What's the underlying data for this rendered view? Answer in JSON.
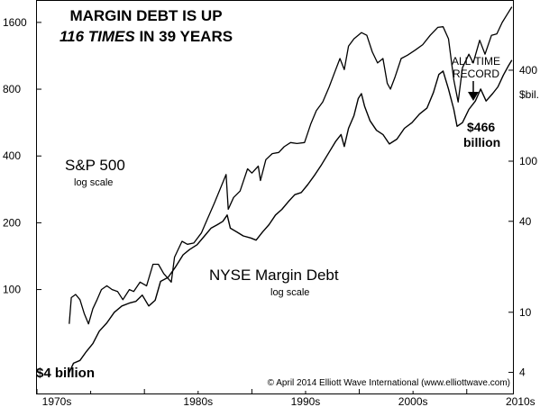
{
  "chart_data": {
    "type": "line",
    "title_line1": "MARGIN DEBT IS UP",
    "title_line2_italic": "116 TIMES",
    "title_line2_rest": " IN 39 YEARS",
    "x_ticks": [
      "1970s",
      "1980s",
      "1990s",
      "2000s",
      "2010s"
    ],
    "xlim": [
      1970,
      2014.3
    ],
    "left_axis": {
      "scale": "log",
      "ticks": [
        "1600",
        "800",
        "400",
        "200",
        "100"
      ],
      "ylim": [
        34,
        2000
      ]
    },
    "right_axis": {
      "scale": "log",
      "unit_label": "$bil.",
      "ticks": [
        "400",
        "100",
        "40",
        "10",
        "4"
      ],
      "ylim": [
        2.9,
        1150
      ]
    },
    "grid": false,
    "series": [
      {
        "name": "S&P 500",
        "sublabel": "log scale",
        "axis": "left",
        "points": [
          [
            1973.0,
            70
          ],
          [
            1973.2,
            92
          ],
          [
            1973.6,
            95
          ],
          [
            1974.0,
            90
          ],
          [
            1974.4,
            78
          ],
          [
            1974.8,
            70
          ],
          [
            1975.2,
            82
          ],
          [
            1975.6,
            90
          ],
          [
            1976.0,
            100
          ],
          [
            1976.5,
            104
          ],
          [
            1977.0,
            100
          ],
          [
            1977.5,
            98
          ],
          [
            1978.0,
            90
          ],
          [
            1978.6,
            100
          ],
          [
            1979.0,
            98
          ],
          [
            1979.6,
            108
          ],
          [
            1980.2,
            104
          ],
          [
            1980.8,
            130
          ],
          [
            1981.3,
            130
          ],
          [
            1981.8,
            118
          ],
          [
            1982.5,
            108
          ],
          [
            1982.8,
            140
          ],
          [
            1983.5,
            165
          ],
          [
            1984.0,
            160
          ],
          [
            1984.6,
            162
          ],
          [
            1985.3,
            180
          ],
          [
            1985.9,
            210
          ],
          [
            1986.5,
            245
          ],
          [
            1987.0,
            280
          ],
          [
            1987.6,
            330
          ],
          [
            1987.8,
            230
          ],
          [
            1988.3,
            260
          ],
          [
            1988.9,
            278
          ],
          [
            1989.6,
            350
          ],
          [
            1990.0,
            335
          ],
          [
            1990.6,
            360
          ],
          [
            1990.8,
            310
          ],
          [
            1991.3,
            385
          ],
          [
            1991.9,
            410
          ],
          [
            1992.5,
            415
          ],
          [
            1993.0,
            440
          ],
          [
            1993.6,
            460
          ],
          [
            1994.2,
            455
          ],
          [
            1994.9,
            460
          ],
          [
            1995.5,
            560
          ],
          [
            1996.0,
            640
          ],
          [
            1996.6,
            700
          ],
          [
            1997.2,
            820
          ],
          [
            1997.7,
            950
          ],
          [
            1998.2,
            1100
          ],
          [
            1998.6,
            980
          ],
          [
            1999.0,
            1250
          ],
          [
            1999.5,
            1350
          ],
          [
            2000.2,
            1440
          ],
          [
            2000.7,
            1400
          ],
          [
            2001.2,
            1180
          ],
          [
            2001.7,
            1050
          ],
          [
            2002.2,
            1100
          ],
          [
            2002.6,
            850
          ],
          [
            2002.9,
            800
          ],
          [
            2003.3,
            900
          ],
          [
            2003.9,
            1100
          ],
          [
            2004.5,
            1140
          ],
          [
            2005.2,
            1200
          ],
          [
            2005.9,
            1270
          ],
          [
            2006.6,
            1400
          ],
          [
            2007.3,
            1520
          ],
          [
            2007.8,
            1530
          ],
          [
            2008.3,
            1350
          ],
          [
            2008.8,
            880
          ],
          [
            2009.2,
            700
          ],
          [
            2009.6,
            1000
          ],
          [
            2010.2,
            1150
          ],
          [
            2010.6,
            1050
          ],
          [
            2011.2,
            1330
          ],
          [
            2011.7,
            1150
          ],
          [
            2012.3,
            1400
          ],
          [
            2012.8,
            1420
          ],
          [
            2013.3,
            1600
          ],
          [
            2013.8,
            1750
          ],
          [
            2014.2,
            1880
          ]
        ]
      },
      {
        "name": "NYSE Margin Debt",
        "sublabel": "log scale",
        "axis": "right",
        "points": [
          [
            1973.0,
            4.0
          ],
          [
            1973.4,
            4.6
          ],
          [
            1974.0,
            4.8
          ],
          [
            1974.6,
            5.5
          ],
          [
            1975.2,
            6.2
          ],
          [
            1975.8,
            7.5
          ],
          [
            1976.5,
            8.5
          ],
          [
            1977.2,
            10
          ],
          [
            1977.9,
            11
          ],
          [
            1978.6,
            11.5
          ],
          [
            1979.2,
            11.8
          ],
          [
            1979.8,
            13
          ],
          [
            1980.4,
            11
          ],
          [
            1981.0,
            12
          ],
          [
            1981.5,
            16
          ],
          [
            1982.2,
            17
          ],
          [
            1982.9,
            20
          ],
          [
            1983.6,
            24
          ],
          [
            1984.2,
            26
          ],
          [
            1984.9,
            28
          ],
          [
            1985.6,
            32
          ],
          [
            1986.2,
            36
          ],
          [
            1986.8,
            38
          ],
          [
            1987.3,
            40
          ],
          [
            1987.7,
            44
          ],
          [
            1988.0,
            36
          ],
          [
            1988.6,
            34
          ],
          [
            1989.2,
            32
          ],
          [
            1989.9,
            31
          ],
          [
            1990.4,
            30
          ],
          [
            1991.0,
            34
          ],
          [
            1991.6,
            38
          ],
          [
            1992.2,
            44
          ],
          [
            1992.8,
            48
          ],
          [
            1993.4,
            54
          ],
          [
            1994.0,
            60
          ],
          [
            1994.6,
            62
          ],
          [
            1995.2,
            70
          ],
          [
            1995.8,
            80
          ],
          [
            1996.5,
            95
          ],
          [
            1997.2,
            115
          ],
          [
            1997.8,
            135
          ],
          [
            1998.3,
            150
          ],
          [
            1998.6,
            125
          ],
          [
            1999.0,
            165
          ],
          [
            1999.5,
            200
          ],
          [
            1999.9,
            260
          ],
          [
            2000.2,
            280
          ],
          [
            2000.5,
            230
          ],
          [
            2001.0,
            185
          ],
          [
            2001.6,
            160
          ],
          [
            2002.2,
            150
          ],
          [
            2002.8,
            130
          ],
          [
            2003.5,
            140
          ],
          [
            2004.2,
            165
          ],
          [
            2004.9,
            180
          ],
          [
            2005.6,
            205
          ],
          [
            2006.3,
            225
          ],
          [
            2006.9,
            285
          ],
          [
            2007.4,
            375
          ],
          [
            2007.8,
            395
          ],
          [
            2008.3,
            300
          ],
          [
            2008.8,
            220
          ],
          [
            2009.1,
            170
          ],
          [
            2009.6,
            180
          ],
          [
            2010.2,
            220
          ],
          [
            2010.8,
            250
          ],
          [
            2011.3,
            300
          ],
          [
            2011.8,
            250
          ],
          [
            2012.4,
            280
          ],
          [
            2012.9,
            310
          ],
          [
            2013.4,
            370
          ],
          [
            2013.9,
            430
          ],
          [
            2014.2,
            466
          ]
        ]
      }
    ],
    "annotations": {
      "start_value": "$4 billion",
      "end_value_line1": "$466",
      "end_value_line2": "billion",
      "record_line1": "ALL-TIME",
      "record_line2": "RECORD",
      "copyright": "© April 2014 Elliott Wave International (www.elliottwave.com)"
    }
  }
}
